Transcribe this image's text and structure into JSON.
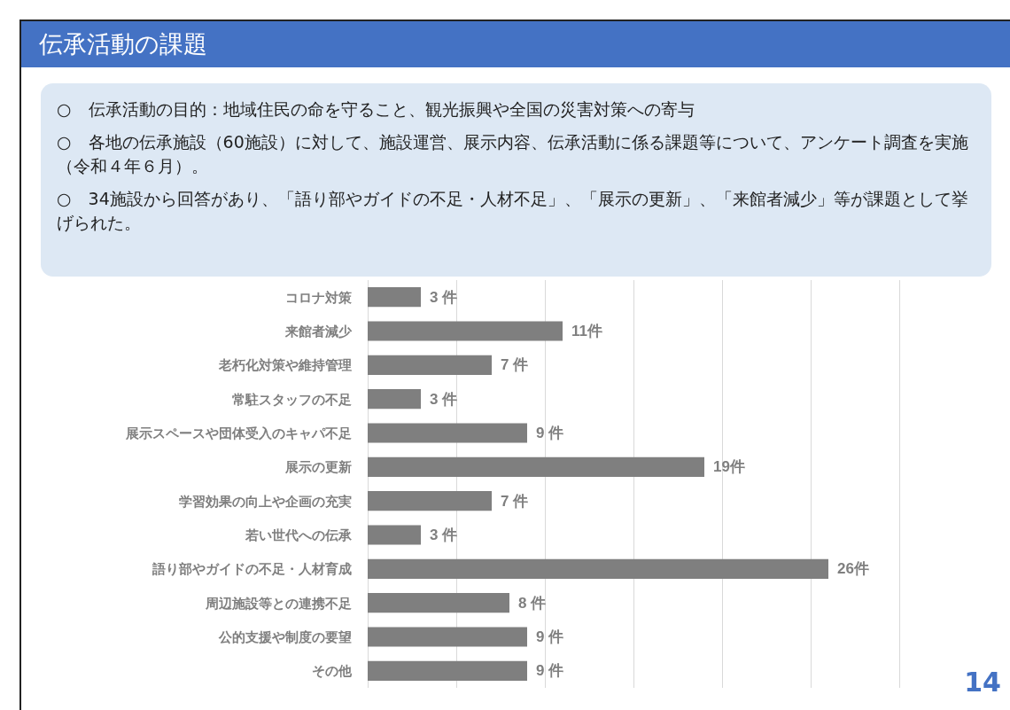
{
  "chart_data": {
    "type": "bar",
    "orientation": "horizontal",
    "title": "伝承活動の課題",
    "annotations": [
      "○　伝承活動の目的：地域住民の命を守ること、観光振興や全国の災害対策への寄与",
      "○　各地の伝承施設（60施設）に対して、施設運営、展示内容、伝承活動に係る課題等について、アンケート調査を実施（令和４年６月）。",
      "○　34施設から回答があり、「語り部やガイドの不足・人材不足」、「展示の更新」、「来館者減少」等が課題として挙げられた。",
      "14"
    ],
    "categories": [
      "コロナ対策",
      "来館者減少",
      "老朽化対策や維持管理",
      "常駐スタッフの不足",
      "展示スペースや団体受入のキャパ不足",
      "展示の更新",
      "学習効果の向上や企画の充実",
      "若い世代への伝承",
      "語り部やガイドの不足・人材育成",
      "周辺施設等との連携不足",
      "公的支援や制度の要望",
      "その他"
    ],
    "values": [
      3,
      11,
      7,
      3,
      9,
      19,
      7,
      3,
      26,
      8,
      9,
      9
    ],
    "value_labels": [
      "3 件",
      "11件",
      "7 件",
      "3 件",
      "9 件",
      "19件",
      "7 件",
      "3 件",
      "26件",
      "8 件",
      "9 件",
      "9 件"
    ],
    "color": "#7f7f7f",
    "xlim": [
      0,
      30
    ],
    "xticks": [
      0,
      5,
      10,
      15,
      20,
      25,
      30
    ],
    "grid": "x",
    "tick_labels": "y"
  }
}
